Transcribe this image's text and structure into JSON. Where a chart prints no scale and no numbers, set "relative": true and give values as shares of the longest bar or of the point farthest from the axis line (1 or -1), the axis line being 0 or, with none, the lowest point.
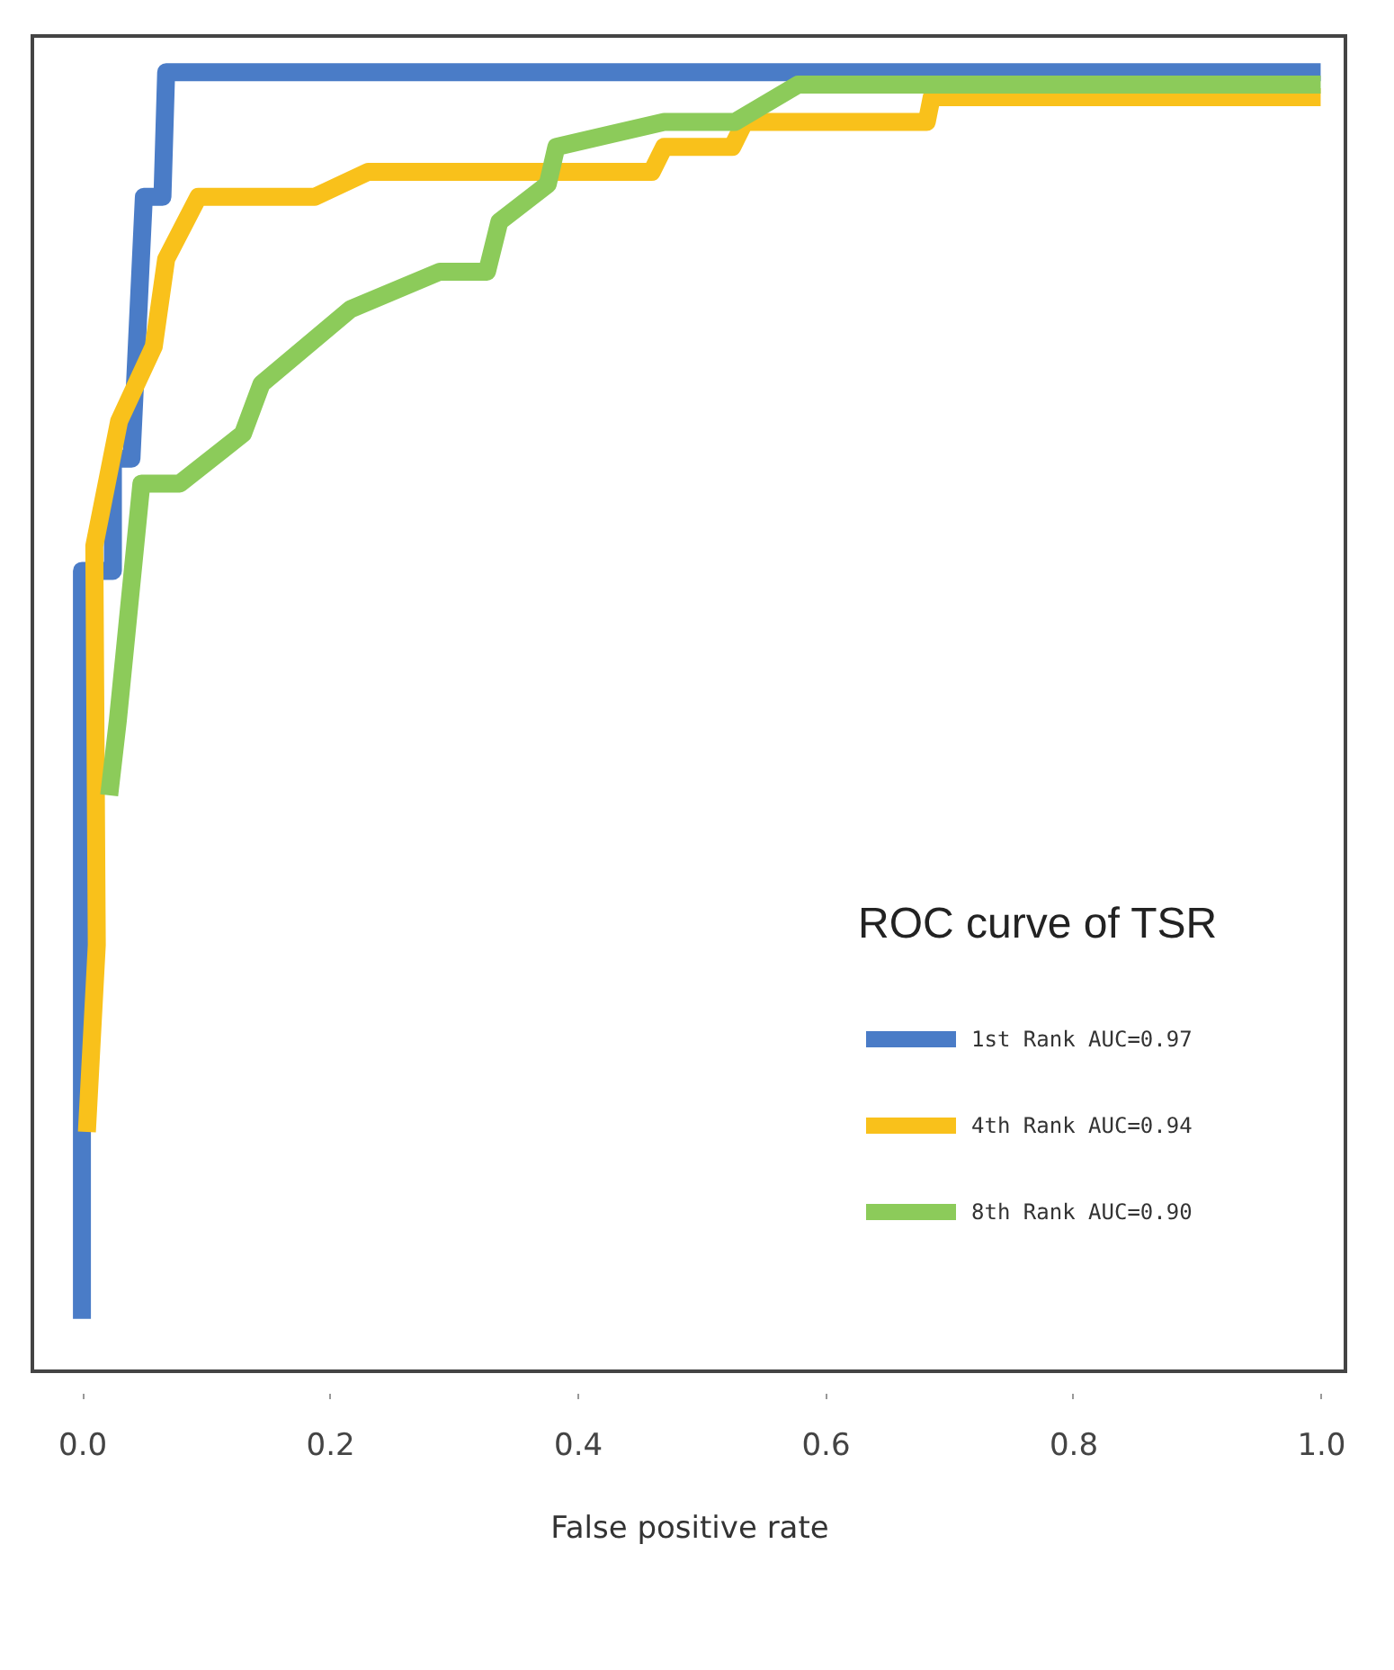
{
  "chart_data": {
    "type": "line",
    "xlabel": "False positive rate",
    "legend_title": "ROC curve of TSR",
    "legend": "bottom right",
    "relative": true,
    "xlim": [
      -0.04,
      1.02
    ],
    "xticks": [
      {
        "value": 0,
        "label": "0.0"
      },
      0.2,
      0.4,
      0.6,
      0.8,
      {
        "value": 1,
        "label": "1.0"
      }
    ],
    "series": [
      {
        "name": "1st Rank AUC=0.97",
        "color": "#4a7cc7",
        "x": [
          0,
          0,
          0.025,
          0.025,
          0.04,
          0.05,
          0.065,
          0.068,
          1.0
        ],
        "values": [
          0,
          0.6,
          0.6,
          0.69,
          0.69,
          0.9,
          0.9,
          1.0,
          1.0
        ]
      },
      {
        "name": "4th Rank AUC=0.94",
        "color": "#f9c11b",
        "x": [
          0.004,
          0.012,
          0.01,
          0.03,
          0.058,
          0.068,
          0.094,
          0.188,
          0.231,
          0.46,
          0.47,
          0.525,
          0.535,
          0.682,
          0.686,
          1.0
        ],
        "values": [
          0.15,
          0.3,
          0.62,
          0.72,
          0.78,
          0.85,
          0.9,
          0.9,
          0.92,
          0.92,
          0.94,
          0.94,
          0.96,
          0.96,
          0.98,
          0.98
        ]
      },
      {
        "name": "8th Rank AUC=0.90",
        "color": "#8ccb5a",
        "x": [
          0.022,
          0.029,
          0.036,
          0.048,
          0.079,
          0.13,
          0.145,
          0.217,
          0.289,
          0.327,
          0.337,
          0.376,
          0.383,
          0.426,
          0.47,
          0.527,
          0.578,
          1.0
        ],
        "values": [
          0.42,
          0.48,
          0.55,
          0.67,
          0.67,
          0.71,
          0.75,
          0.81,
          0.84,
          0.84,
          0.88,
          0.91,
          0.94,
          0.95,
          0.96,
          0.96,
          0.99,
          0.99
        ]
      }
    ]
  }
}
